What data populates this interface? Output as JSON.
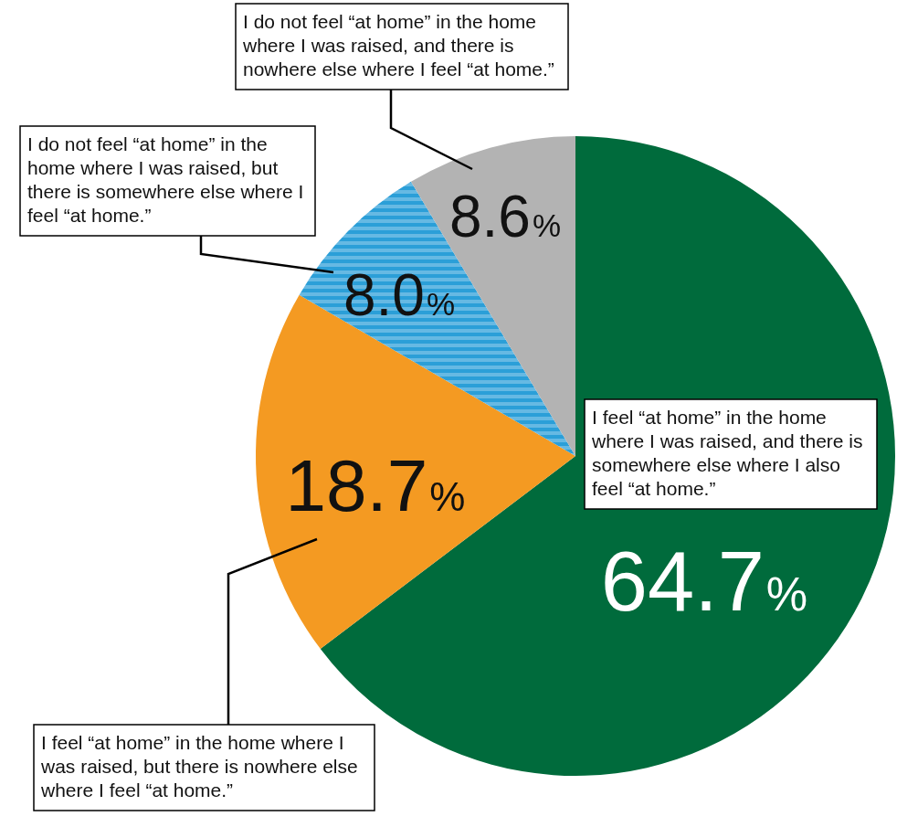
{
  "chart_data": {
    "type": "pie",
    "categories": [
      "I feel “at home” in the home where I was raised, and there is somewhere else where I also feel “at home.”",
      "I feel “at home” in the home where I was raised, but there is nowhere else where I feel “at home.”",
      "I do not feel “at home” in the home where I was raised, but there is somewhere else where I feel “at home.”",
      "I do not feel “at home” in the home where I was raised, and there is nowhere else where I feel “at home.”"
    ],
    "values": [
      64.7,
      18.7,
      8.0,
      8.6
    ],
    "value_labels": [
      "64.7%",
      "18.7%",
      "8.0%",
      "8.6%"
    ],
    "colors": [
      "#006b3c",
      "#f49a22",
      "#2b9fd8",
      "#b3b3b3"
    ],
    "data_labels": true
  }
}
